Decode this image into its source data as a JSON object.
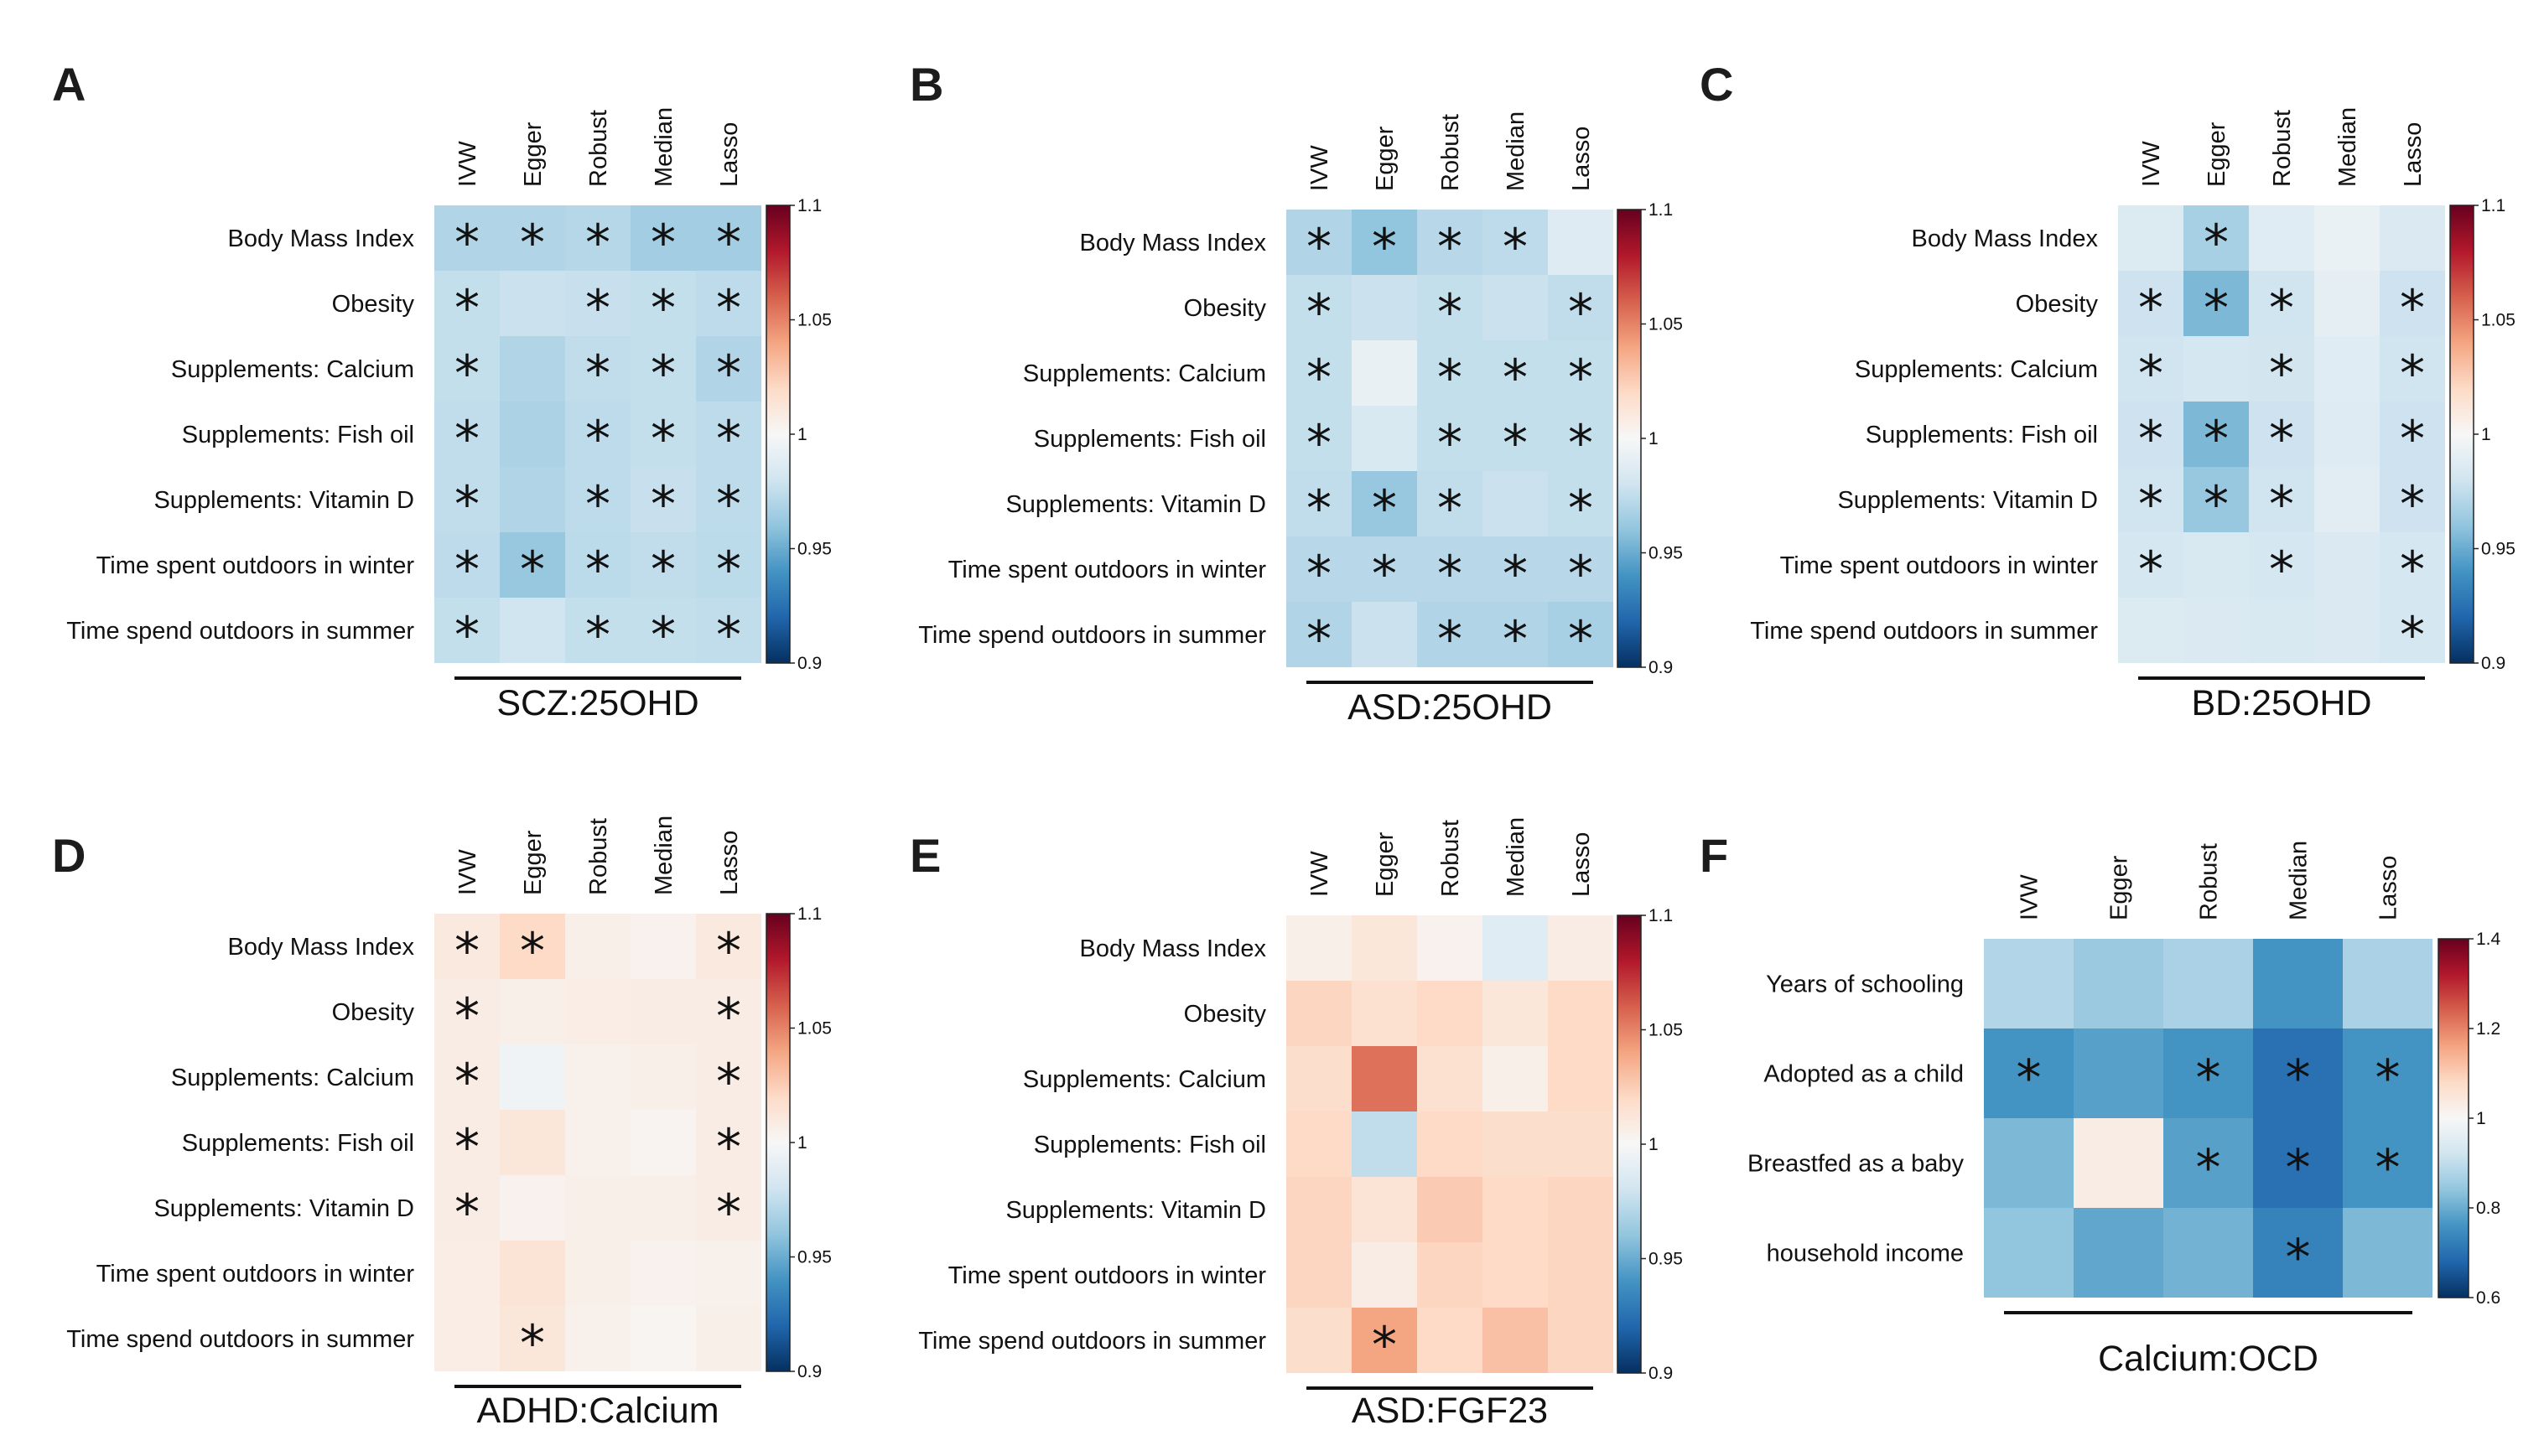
{
  "chart_data": [
    {
      "type": "heatmap",
      "panel": "A",
      "title": "SCZ:25OHD",
      "columns": [
        "IVW",
        "Egger",
        "Robust",
        "Median",
        "Lasso"
      ],
      "rows": [
        "Body Mass Index",
        "Obesity",
        "Supplements: Calcium",
        "Supplements: Fish oil",
        "Supplements: Vitamin D",
        "Time spent outdoors in winter",
        "Time spend outdoors in summer"
      ],
      "values": [
        [
          0.97,
          0.97,
          0.971,
          0.965,
          0.965
        ],
        [
          0.976,
          0.978,
          0.977,
          0.976,
          0.974
        ],
        [
          0.976,
          0.97,
          0.975,
          0.976,
          0.97
        ],
        [
          0.975,
          0.968,
          0.974,
          0.976,
          0.974
        ],
        [
          0.975,
          0.97,
          0.974,
          0.977,
          0.974
        ],
        [
          0.974,
          0.962,
          0.973,
          0.975,
          0.973
        ],
        [
          0.976,
          0.98,
          0.976,
          0.976,
          0.975
        ]
      ],
      "significant": [
        [
          true,
          true,
          true,
          true,
          true
        ],
        [
          true,
          false,
          true,
          true,
          true
        ],
        [
          true,
          false,
          true,
          true,
          true
        ],
        [
          true,
          false,
          true,
          true,
          true
        ],
        [
          true,
          false,
          true,
          true,
          true
        ],
        [
          true,
          true,
          true,
          true,
          true
        ],
        [
          true,
          false,
          true,
          true,
          true
        ]
      ],
      "colorbar": {
        "min": 0.9,
        "max": 1.1,
        "ticks": [
          0.9,
          0.95,
          1,
          1.05,
          1.1
        ],
        "tick_labels": [
          "0.9",
          "0.95",
          "1",
          "1.05",
          "1.1"
        ]
      }
    },
    {
      "type": "heatmap",
      "panel": "B",
      "title": "ASD:25OHD",
      "columns": [
        "IVW",
        "Egger",
        "Robust",
        "Median",
        "Lasso"
      ],
      "rows": [
        "Body Mass Index",
        "Obesity",
        "Supplements: Calcium",
        "Supplements: Fish oil",
        "Supplements: Vitamin D",
        "Time spent outdoors in winter",
        "Time spend outdoors in summer"
      ],
      "values": [
        [
          0.97,
          0.96,
          0.972,
          0.974,
          0.987
        ],
        [
          0.976,
          0.978,
          0.976,
          0.978,
          0.975
        ],
        [
          0.976,
          0.992,
          0.976,
          0.976,
          0.976
        ],
        [
          0.976,
          0.984,
          0.976,
          0.976,
          0.976
        ],
        [
          0.975,
          0.962,
          0.975,
          0.978,
          0.976
        ],
        [
          0.972,
          0.972,
          0.972,
          0.972,
          0.972
        ],
        [
          0.97,
          0.978,
          0.97,
          0.97,
          0.967
        ]
      ],
      "significant": [
        [
          true,
          true,
          true,
          true,
          false
        ],
        [
          true,
          false,
          true,
          false,
          true
        ],
        [
          true,
          false,
          true,
          true,
          true
        ],
        [
          true,
          false,
          true,
          true,
          true
        ],
        [
          true,
          true,
          true,
          false,
          true
        ],
        [
          true,
          true,
          true,
          true,
          true
        ],
        [
          true,
          false,
          true,
          true,
          true
        ]
      ],
      "colorbar": {
        "min": 0.9,
        "max": 1.1,
        "ticks": [
          0.9,
          0.95,
          1,
          1.05,
          1.1
        ],
        "tick_labels": [
          "0.9",
          "0.95",
          "1",
          "1.05",
          "1.1"
        ]
      }
    },
    {
      "type": "heatmap",
      "panel": "C",
      "title": "BD:25OHD",
      "columns": [
        "IVW",
        "Egger",
        "Robust",
        "Median",
        "Lasso"
      ],
      "rows": [
        "Body Mass Index",
        "Obesity",
        "Supplements: Calcium",
        "Supplements: Fish oil",
        "Supplements: Vitamin D",
        "Time spent outdoors in winter",
        "Time spend outdoors in summer"
      ],
      "values": [
        [
          0.986,
          0.967,
          0.988,
          0.993,
          0.985
        ],
        [
          0.979,
          0.955,
          0.98,
          0.99,
          0.979
        ],
        [
          0.98,
          0.982,
          0.981,
          0.988,
          0.98
        ],
        [
          0.979,
          0.955,
          0.979,
          0.987,
          0.979
        ],
        [
          0.98,
          0.962,
          0.98,
          0.989,
          0.979
        ],
        [
          0.982,
          0.984,
          0.982,
          0.985,
          0.982
        ],
        [
          0.986,
          0.985,
          0.984,
          0.985,
          0.982
        ]
      ],
      "significant": [
        [
          false,
          true,
          false,
          false,
          false
        ],
        [
          true,
          true,
          true,
          false,
          true
        ],
        [
          true,
          false,
          true,
          false,
          true
        ],
        [
          true,
          true,
          true,
          false,
          true
        ],
        [
          true,
          true,
          true,
          false,
          true
        ],
        [
          true,
          false,
          true,
          false,
          true
        ],
        [
          false,
          false,
          false,
          false,
          true
        ]
      ],
      "colorbar": {
        "min": 0.9,
        "max": 1.1,
        "ticks": [
          0.9,
          0.95,
          1,
          1.05,
          1.1
        ],
        "tick_labels": [
          "0.9",
          "0.95",
          "1",
          "1.05",
          "1.1"
        ]
      }
    },
    {
      "type": "heatmap",
      "panel": "D",
      "title": "ADHD:Calcium",
      "columns": [
        "IVW",
        "Egger",
        "Robust",
        "Median",
        "Lasso"
      ],
      "rows": [
        "Body Mass Index",
        "Obesity",
        "Supplements: Calcium",
        "Supplements: Fish oil",
        "Supplements: Vitamin D",
        "Time spent outdoors in winter",
        "Time spend outdoors in summer"
      ],
      "values": [
        [
          1.01,
          1.02,
          1.006,
          1.004,
          1.01
        ],
        [
          1.008,
          1.006,
          1.007,
          1.008,
          1.008
        ],
        [
          1.008,
          0.996,
          1.005,
          1.006,
          1.008
        ],
        [
          1.008,
          1.012,
          1.005,
          1.003,
          1.008
        ],
        [
          1.008,
          1.004,
          1.006,
          1.006,
          1.008
        ],
        [
          1.007,
          1.014,
          1.006,
          1.004,
          1.005
        ],
        [
          1.007,
          1.012,
          1.005,
          1.002,
          1.006
        ]
      ],
      "significant": [
        [
          true,
          true,
          false,
          false,
          true
        ],
        [
          true,
          false,
          false,
          false,
          true
        ],
        [
          true,
          false,
          false,
          false,
          true
        ],
        [
          true,
          false,
          false,
          false,
          true
        ],
        [
          true,
          false,
          false,
          false,
          true
        ],
        [
          false,
          false,
          false,
          false,
          false
        ],
        [
          false,
          true,
          false,
          false,
          false
        ]
      ],
      "colorbar": {
        "min": 0.9,
        "max": 1.1,
        "ticks": [
          0.9,
          0.95,
          1,
          1.05,
          1.1
        ],
        "tick_labels": [
          "0.9",
          "0.95",
          "1",
          "1.05",
          "1.1"
        ]
      }
    },
    {
      "type": "heatmap",
      "panel": "E",
      "title": "ASD:FGF23",
      "columns": [
        "IVW",
        "Egger",
        "Robust",
        "Median",
        "Lasso"
      ],
      "rows": [
        "Body Mass Index",
        "Obesity",
        "Supplements: Calcium",
        "Supplements: Fish oil",
        "Supplements: Vitamin D",
        "Time spent outdoors in winter",
        "Time spend outdoors in summer"
      ],
      "values": [
        [
          1.006,
          1.012,
          1.004,
          0.988,
          1.008
        ],
        [
          1.022,
          1.016,
          1.02,
          1.012,
          1.02
        ],
        [
          1.018,
          1.055,
          1.016,
          1.006,
          1.02
        ],
        [
          1.02,
          0.975,
          1.02,
          1.018,
          1.018
        ],
        [
          1.022,
          1.014,
          1.026,
          1.02,
          1.022
        ],
        [
          1.022,
          1.008,
          1.022,
          1.02,
          1.022
        ],
        [
          1.018,
          1.04,
          1.02,
          1.03,
          1.022
        ]
      ],
      "significant": [
        [
          false,
          false,
          false,
          false,
          false
        ],
        [
          false,
          false,
          false,
          false,
          false
        ],
        [
          false,
          false,
          false,
          false,
          false
        ],
        [
          false,
          false,
          false,
          false,
          false
        ],
        [
          false,
          false,
          false,
          false,
          false
        ],
        [
          false,
          false,
          false,
          false,
          false
        ],
        [
          false,
          true,
          false,
          false,
          false
        ]
      ],
      "colorbar": {
        "min": 0.9,
        "max": 1.1,
        "ticks": [
          0.9,
          0.95,
          1,
          1.05,
          1.1
        ],
        "tick_labels": [
          "0.9",
          "0.95",
          "1",
          "1.05",
          "1.1"
        ]
      }
    },
    {
      "type": "heatmap",
      "panel": "F",
      "title": "Calcium:OCD",
      "columns": [
        "IVW",
        "Egger",
        "Robust",
        "Median",
        "Lasso"
      ],
      "rows": [
        "Years of schooling",
        "Adopted as a child",
        "Breastfed as a baby",
        "household income"
      ],
      "values": [
        [
          0.88,
          0.85,
          0.87,
          0.76,
          0.87
        ],
        [
          0.76,
          0.78,
          0.76,
          0.7,
          0.76
        ],
        [
          0.82,
          1.03,
          0.78,
          0.7,
          0.76
        ],
        [
          0.84,
          0.79,
          0.81,
          0.73,
          0.82
        ]
      ],
      "significant": [
        [
          false,
          false,
          false,
          false,
          false
        ],
        [
          true,
          false,
          true,
          true,
          true
        ],
        [
          false,
          false,
          true,
          true,
          true
        ],
        [
          false,
          false,
          false,
          true,
          false
        ]
      ],
      "colorbar": {
        "min": 0.6,
        "max": 1.4,
        "ticks": [
          0.6,
          0.8,
          1,
          1.2,
          1.4
        ],
        "tick_labels": [
          "0.6",
          "0.8",
          "1",
          "1.2",
          "1.4"
        ]
      }
    }
  ],
  "colors": {
    "low": "#053061",
    "low_mid": "#2166ac",
    "low_soft": "#4393c3",
    "low_pale": "#92c5de",
    "low_faint": "#d1e5f0",
    "mid": "#f7f7f7",
    "high_faint": "#fddbc7",
    "high_pale": "#f4a582",
    "high_soft": "#d6604d",
    "high_mid": "#b2182b",
    "high": "#67001f"
  },
  "star_symbol": "*"
}
